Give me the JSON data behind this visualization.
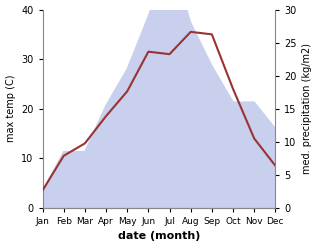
{
  "months": [
    "Jan",
    "Feb",
    "Mar",
    "Apr",
    "May",
    "Jun",
    "Jul",
    "Aug",
    "Sep",
    "Oct",
    "Nov",
    "Dec"
  ],
  "temperature": [
    3.5,
    10.5,
    13.0,
    18.5,
    23.5,
    31.5,
    31.0,
    35.5,
    35.0,
    24.0,
    14.0,
    8.5
  ],
  "precipitation": [
    2.5,
    8.5,
    8.5,
    15.5,
    21.0,
    29.0,
    38.5,
    28.0,
    21.5,
    16.0,
    16.0,
    12.0
  ],
  "temp_color": "#993333",
  "precip_fill_color": "#c8d0ee",
  "ylabel_left": "max temp (C)",
  "ylabel_right": "med. precipitation (kg/m2)",
  "xlabel": "date (month)",
  "ylim_left": [
    0,
    40
  ],
  "ylim_right": [
    0,
    30
  ],
  "yticks_left": [
    0,
    10,
    20,
    30,
    40
  ],
  "yticks_right": [
    0,
    5,
    10,
    15,
    20,
    25,
    30
  ],
  "bg_color": "#ffffff"
}
